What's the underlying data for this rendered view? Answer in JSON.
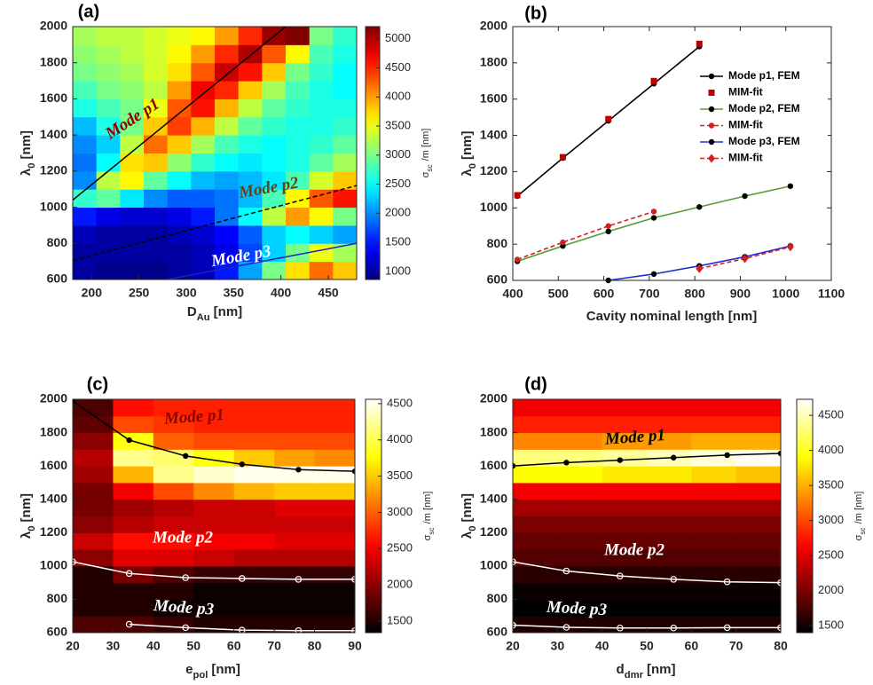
{
  "chart_data": [
    {
      "type": "heatmap",
      "label": "(a)",
      "colormap": "jet",
      "x": [
        192.5,
        217.5,
        242.5,
        267.5,
        292.5,
        317.5,
        342.5,
        367.5,
        392.5,
        417.5,
        442.5,
        467.5
      ],
      "y": [
        650,
        750,
        850,
        950,
        1050,
        1150,
        1250,
        1350,
        1450,
        1550,
        1650,
        1750,
        1850,
        1950
      ],
      "z": [
        [
          1000,
          900,
          900,
          900,
          1000,
          1100,
          1500,
          2100,
          3000,
          3700,
          4200,
          3800
        ],
        [
          1000,
          1000,
          1000,
          1000,
          1000,
          1100,
          1300,
          1700,
          2300,
          3000,
          3500,
          3200
        ],
        [
          1100,
          1000,
          1000,
          1000,
          1100,
          1200,
          1400,
          1800,
          2300,
          2500,
          2300,
          2100
        ],
        [
          1500,
          1300,
          1200,
          1200,
          1300,
          1500,
          1900,
          2500,
          3300,
          4000,
          3600,
          3000
        ],
        [
          2700,
          2900,
          2400,
          2000,
          1800,
          1800,
          1900,
          2200,
          2800,
          3600,
          4300,
          4600
        ],
        [
          2000,
          3300,
          3600,
          2900,
          2500,
          2200,
          2100,
          2200,
          2400,
          2800,
          3400,
          3800
        ],
        [
          1900,
          2500,
          3700,
          3800,
          3100,
          2700,
          2500,
          2400,
          2500,
          2600,
          2900,
          3200
        ],
        [
          2000,
          2300,
          3300,
          4200,
          3800,
          3200,
          2800,
          2600,
          2500,
          2600,
          2700,
          2900
        ],
        [
          2200,
          2600,
          3000,
          3800,
          4400,
          3900,
          3300,
          2900,
          2700,
          2600,
          2600,
          2700
        ],
        [
          2600,
          2800,
          3000,
          3500,
          4300,
          4600,
          3900,
          3300,
          2900,
          2700,
          2600,
          2600
        ],
        [
          2800,
          3000,
          3100,
          3300,
          4000,
          4700,
          4500,
          3800,
          3200,
          2800,
          2600,
          2500
        ],
        [
          3000,
          3100,
          3200,
          3400,
          3700,
          4300,
          4900,
          4600,
          3800,
          3000,
          2700,
          2500
        ],
        [
          3100,
          3200,
          3300,
          3400,
          3600,
          4000,
          4500,
          5000,
          4300,
          3600,
          2800,
          2600
        ],
        [
          3200,
          3300,
          3300,
          3400,
          3500,
          3600,
          4000,
          4500,
          5100,
          5200,
          3000,
          2700
        ]
      ],
      "clim": [
        860,
        5210
      ],
      "colorbar_ticks": [
        1000,
        1500,
        2000,
        2500,
        3000,
        3500,
        4000,
        4500,
        5000
      ],
      "colorbar_label": {
        "base": "σ",
        "sub": "sc",
        "unit": "/m [nm]"
      },
      "xlim": [
        180,
        480
      ],
      "xticks": [
        200,
        250,
        300,
        350,
        400,
        450
      ],
      "ylim": [
        600,
        2000
      ],
      "yticks": [
        600,
        800,
        1000,
        1200,
        1400,
        1600,
        1800,
        2000
      ],
      "xlabel": {
        "base": "D",
        "sub": "Au",
        "unit": "[nm]"
      },
      "ylabel": {
        "base": "λ",
        "sub": "0",
        "unit": "[nm]"
      },
      "lines": [
        {
          "label": "Mode p1",
          "label_color": "#8b0000",
          "color": "#000000",
          "dash": "solid",
          "marker": "none",
          "x": [
            180,
            405
          ],
          "values": [
            1040,
            2000
          ]
        },
        {
          "label": "Mode p2",
          "label_color": "#5c4418",
          "color": "#000000",
          "dash": "dashed",
          "marker": "none",
          "x": [
            180,
            480
          ],
          "values": [
            705,
            1120
          ]
        },
        {
          "label": "Mode p3",
          "label_color": "#ffffff",
          "color": "#2020c0",
          "dash": "solid",
          "marker": "none",
          "x": [
            280,
            480
          ],
          "values": [
            600,
            800
          ]
        }
      ]
    },
    {
      "type": "line",
      "label": "(b)",
      "xlim": [
        400,
        1100
      ],
      "xticks": [
        400,
        500,
        600,
        700,
        800,
        900,
        1000,
        1100
      ],
      "ylim": [
        600,
        2000
      ],
      "yticks": [
        600,
        800,
        1000,
        1200,
        1400,
        1600,
        1800,
        2000
      ],
      "xlabel": "Cavity nominal length [nm]",
      "ylabel": {
        "base": "λ",
        "sub": "0",
        "unit": "[nm]"
      },
      "legend": "upper right",
      "series": [
        {
          "name": "Mode p1, FEM",
          "color": "#000000",
          "dash": "solid",
          "marker": "circle",
          "marker_color": "#000000",
          "x": [
            410,
            510,
            610,
            710,
            810
          ],
          "values": [
            1065,
            1275,
            1480,
            1685,
            1890
          ]
        },
        {
          "name": "MIM-fit",
          "color": "#c00000",
          "dash": "none",
          "marker": "square",
          "marker_color": "#c00000",
          "x": [
            410,
            510,
            610,
            710,
            810
          ],
          "values": [
            1070,
            1280,
            1490,
            1700,
            1905
          ]
        },
        {
          "name": "Mode p2, FEM",
          "color": "#5a9a3a",
          "dash": "solid",
          "marker": "circle",
          "marker_color": "#000000",
          "x": [
            410,
            510,
            610,
            710,
            810,
            910,
            1010
          ],
          "values": [
            705,
            790,
            870,
            945,
            1005,
            1065,
            1120
          ]
        },
        {
          "name": "MIM-fit",
          "color": "#d02020",
          "dash": "dashed",
          "marker": "circle",
          "marker_color": "#d02020",
          "x": [
            410,
            510,
            610,
            710
          ],
          "values": [
            715,
            810,
            900,
            980
          ]
        },
        {
          "name": "Mode p3, FEM",
          "color": "#2030d0",
          "dash": "solid",
          "marker": "circle",
          "marker_color": "#000000",
          "x": [
            610,
            710,
            810,
            910,
            1010
          ],
          "values": [
            600,
            635,
            680,
            730,
            790
          ]
        },
        {
          "name": "MIM-fit",
          "color": "#d02020",
          "dash": "dashed",
          "marker": "diamond",
          "marker_color": "#d02020",
          "x": [
            810,
            910,
            1010
          ],
          "values": [
            665,
            720,
            785
          ]
        }
      ]
    },
    {
      "type": "heatmap",
      "label": "(c)",
      "colormap": "hot",
      "x": [
        25,
        35,
        45,
        55,
        65,
        75,
        85
      ],
      "y": [
        650,
        750,
        850,
        950,
        1050,
        1150,
        1250,
        1350,
        1450,
        1550,
        1650,
        1750,
        1850,
        1950
      ],
      "z": [
        [
          1700,
          1700,
          1600,
          1500,
          1500,
          1500,
          1500
        ],
        [
          1500,
          1500,
          1400,
          1400,
          1400,
          1400,
          1400
        ],
        [
          1500,
          1500,
          1500,
          1400,
          1400,
          1400,
          1400
        ],
        [
          1500,
          1900,
          1700,
          1600,
          1600,
          1600,
          1600
        ],
        [
          2000,
          2400,
          2400,
          2300,
          2200,
          2200,
          2200
        ],
        [
          2300,
          2600,
          2600,
          2500,
          2500,
          2400,
          2400
        ],
        [
          2000,
          2200,
          2300,
          2300,
          2300,
          2300,
          2300
        ],
        [
          1900,
          2100,
          2200,
          2300,
          2300,
          2400,
          2400
        ],
        [
          1900,
          2500,
          2900,
          3200,
          3400,
          3500,
          3500
        ],
        [
          2100,
          3400,
          4200,
          4400,
          4500,
          4500,
          4500
        ],
        [
          2200,
          4200,
          4100,
          3800,
          3500,
          3300,
          3200
        ],
        [
          2000,
          3800,
          3000,
          2900,
          2900,
          2900,
          2900
        ],
        [
          1800,
          2900,
          2800,
          2700,
          2700,
          2700,
          2700
        ],
        [
          1700,
          2600,
          2700,
          2700,
          2700,
          2700,
          2700
        ]
      ],
      "clim": [
        1340,
        4560
      ],
      "colorbar_ticks": [
        1500,
        2000,
        2500,
        3000,
        3500,
        4000,
        4500
      ],
      "colorbar_label": {
        "base": "σ",
        "sub": "sc",
        "unit": "/m [nm]"
      },
      "xlim": [
        20,
        90
      ],
      "xticks": [
        20,
        30,
        40,
        50,
        60,
        70,
        80,
        90
      ],
      "ylim": [
        600,
        2000
      ],
      "yticks": [
        600,
        800,
        1000,
        1200,
        1400,
        1600,
        1800,
        2000
      ],
      "xlabel": {
        "base": "e",
        "sub": "pol",
        "unit": "[nm]"
      },
      "ylabel": {
        "base": "λ",
        "sub": "0",
        "unit": "[nm]"
      },
      "lines": [
        {
          "label": "Mode p1",
          "label_color": "#8b0000",
          "color": "#000000",
          "dash": "solid",
          "marker": "circle",
          "x": [
            20,
            34,
            48,
            62,
            76,
            90
          ],
          "values": [
            1990,
            1755,
            1660,
            1610,
            1578,
            1568
          ]
        },
        {
          "label": "Mode p2",
          "label_color": "#ffffff",
          "color": "#ffffff",
          "dash": "solid",
          "marker": "open-circle",
          "x": [
            20,
            34,
            48,
            62,
            76,
            90
          ],
          "values": [
            1025,
            955,
            930,
            925,
            920,
            920
          ]
        },
        {
          "label": "Mode p3",
          "label_color": "#ffffff",
          "color": "#ffffff",
          "dash": "solid",
          "marker": "open-circle",
          "x": [
            34,
            48,
            62,
            76,
            90
          ],
          "values": [
            650,
            630,
            615,
            612,
            612
          ]
        }
      ]
    },
    {
      "type": "heatmap",
      "label": "(d)",
      "colormap": "hot",
      "x": [
        25,
        35,
        45,
        55,
        65,
        75
      ],
      "y": [
        650,
        750,
        850,
        950,
        1050,
        1150,
        1250,
        1350,
        1450,
        1550,
        1650,
        1750,
        1850,
        1950
      ],
      "z": [
        [
          1550,
          1550,
          1550,
          1550,
          1550,
          1550
        ],
        [
          1400,
          1400,
          1400,
          1400,
          1400,
          1400
        ],
        [
          1450,
          1450,
          1450,
          1450,
          1450,
          1450
        ],
        [
          1600,
          1600,
          1600,
          1600,
          1600,
          1600
        ],
        [
          1800,
          1800,
          1800,
          1800,
          1800,
          1800
        ],
        [
          1900,
          1900,
          1900,
          1900,
          1900,
          1900
        ],
        [
          2000,
          2000,
          2000,
          2000,
          2000,
          2000
        ],
        [
          2200,
          2200,
          2200,
          2200,
          2200,
          2200
        ],
        [
          2600,
          2600,
          2600,
          2600,
          2600,
          2600
        ],
        [
          3900,
          3900,
          3800,
          3800,
          3700,
          3600
        ],
        [
          4300,
          4300,
          4400,
          4500,
          4600,
          4700
        ],
        [
          3300,
          3300,
          3400,
          3400,
          3500,
          3500
        ],
        [
          2800,
          2800,
          2800,
          2800,
          2800,
          2800
        ],
        [
          2600,
          2600,
          2600,
          2600,
          2600,
          2600
        ]
      ],
      "clim": [
        1400,
        4730
      ],
      "colorbar_ticks": [
        1500,
        2000,
        2500,
        3000,
        3500,
        4000,
        4500
      ],
      "colorbar_label": {
        "base": "σ",
        "sub": "sc",
        "unit": "/m [nm]"
      },
      "xlim": [
        20,
        80
      ],
      "xticks": [
        20,
        30,
        40,
        50,
        60,
        70,
        80
      ],
      "ylim": [
        600,
        2000
      ],
      "yticks": [
        600,
        800,
        1000,
        1200,
        1400,
        1600,
        1800,
        2000
      ],
      "xlabel": {
        "base": "d",
        "sub": "dmr",
        "unit": "[nm]"
      },
      "ylabel": {
        "base": "λ",
        "sub": "0",
        "unit": "[nm]"
      },
      "lines": [
        {
          "label": "Mode p1",
          "label_color": "#000000",
          "color": "#000000",
          "dash": "solid",
          "marker": "circle",
          "x": [
            20,
            32,
            44,
            56,
            68,
            80
          ],
          "values": [
            1600,
            1620,
            1635,
            1650,
            1665,
            1675
          ]
        },
        {
          "label": "Mode p2",
          "label_color": "#ffffff",
          "color": "#ffffff",
          "dash": "solid",
          "marker": "open-circle",
          "x": [
            20,
            32,
            44,
            56,
            68,
            80
          ],
          "values": [
            1025,
            970,
            940,
            920,
            905,
            900
          ]
        },
        {
          "label": "Mode p3",
          "label_color": "#ffffff",
          "color": "#ffffff",
          "dash": "solid",
          "marker": "open-circle",
          "x": [
            20,
            32,
            44,
            56,
            68,
            80
          ],
          "values": [
            645,
            632,
            628,
            628,
            630,
            630
          ]
        }
      ]
    }
  ]
}
